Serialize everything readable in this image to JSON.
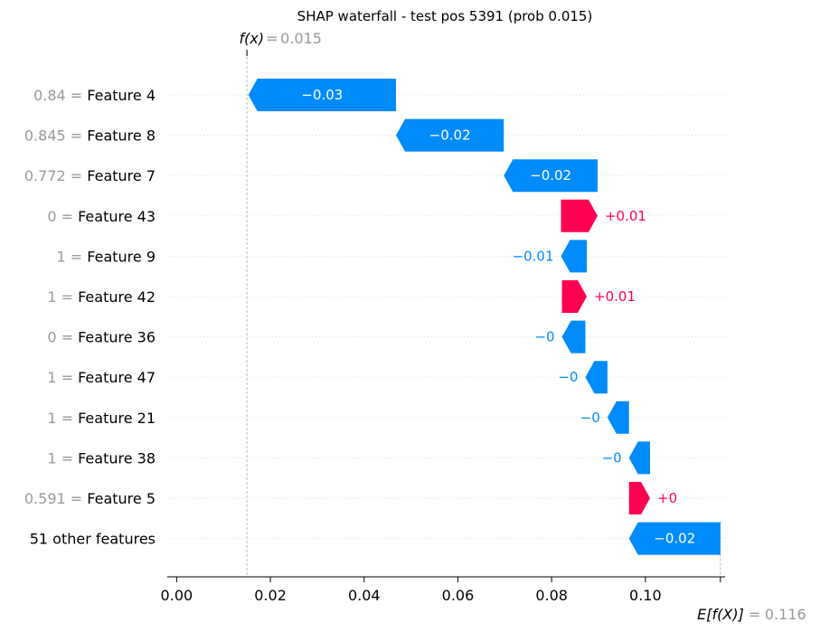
{
  "chart_data": {
    "type": "waterfall",
    "title": "SHAP waterfall - test pos 5391 (prob 0.015)",
    "fx_label": "f(x)",
    "fx_value": "0.015",
    "fx": 0.015,
    "efx_label": "E[f(X)]",
    "efx_value": "0.116",
    "efx": 0.116,
    "xlim": [
      -0.002,
      0.117
    ],
    "xticks": [
      0.0,
      0.02,
      0.04,
      0.06,
      0.08,
      0.1
    ],
    "xtick_labels": [
      "0.00",
      "0.02",
      "0.04",
      "0.06",
      "0.08",
      "0.10"
    ],
    "rows": [
      {
        "value": "0.84",
        "feature": "Feature 4",
        "contribution": -0.0315,
        "label": "−0.03"
      },
      {
        "value": "0.845",
        "feature": "Feature 8",
        "contribution": -0.023,
        "label": "−0.02"
      },
      {
        "value": "0.772",
        "feature": "Feature 7",
        "contribution": -0.02,
        "label": "−0.02"
      },
      {
        "value": "0",
        "feature": "Feature 43",
        "contribution": 0.0078,
        "label": "+0.01"
      },
      {
        "value": "1",
        "feature": "Feature 9",
        "contribution": -0.0055,
        "label": "−0.01"
      },
      {
        "value": "1",
        "feature": "Feature 42",
        "contribution": 0.0053,
        "label": "+0.01"
      },
      {
        "value": "0",
        "feature": "Feature 36",
        "contribution": -0.005,
        "label": "−0"
      },
      {
        "value": "1",
        "feature": "Feature 47",
        "contribution": -0.0047,
        "label": "−0"
      },
      {
        "value": "1",
        "feature": "Feature 21",
        "contribution": -0.0046,
        "label": "−0"
      },
      {
        "value": "1",
        "feature": "Feature 38",
        "contribution": -0.0045,
        "label": "−0"
      },
      {
        "value": "0.591",
        "feature": "Feature 5",
        "contribution": 0.0045,
        "label": "+0"
      },
      {
        "value": "",
        "feature": "51 other features",
        "contribution": -0.0195,
        "label": "−0.02"
      }
    ],
    "colors": {
      "negative": "#008bfb",
      "positive": "#ff0051",
      "muted": "#999999"
    }
  }
}
